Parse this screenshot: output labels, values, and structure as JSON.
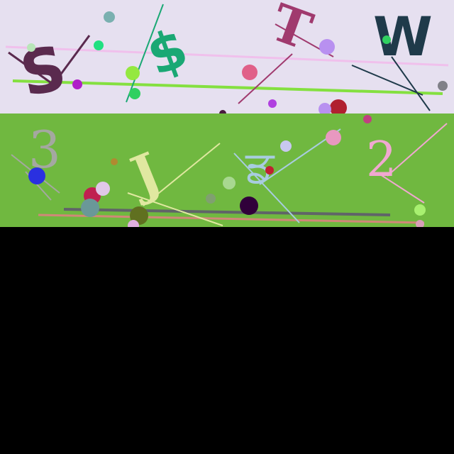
{
  "panels": [
    {
      "id": "top",
      "background": "#e6e0f0",
      "glyphs": [
        "S",
        "$",
        "T",
        "W"
      ],
      "glyph_colors": [
        "#5a2a4e",
        "#1aa874",
        "#a03a6e",
        "#1f3a4a"
      ]
    },
    {
      "id": "bottom",
      "background": "#70b840",
      "glyphs": [
        "3",
        "J",
        "ਡ",
        "2"
      ],
      "glyph_colors": [
        "#a4a8a0",
        "#e0e8a0",
        "#a8cce0",
        "#f0a8d0"
      ]
    }
  ],
  "lower_area": {
    "color": "#000000"
  }
}
